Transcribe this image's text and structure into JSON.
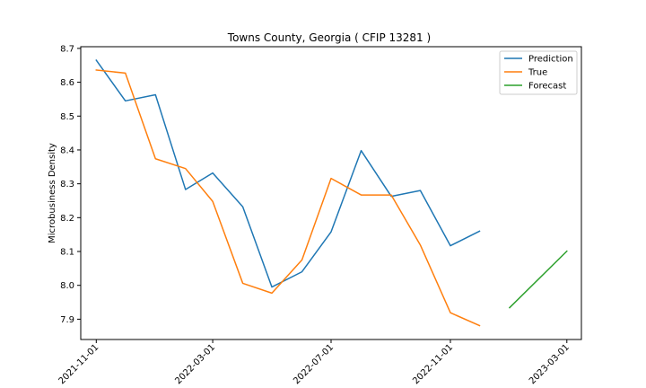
{
  "chart_data": {
    "type": "line",
    "title": "Towns County, Georgia ( CFIP 13281 )",
    "xlabel": "",
    "ylabel": "Microbusiness Density",
    "ylim": [
      7.84,
      8.705
    ],
    "xlim": [
      "2021-10-16",
      "2023-03-16"
    ],
    "y_ticks": [
      7.9,
      8.0,
      8.1,
      8.2,
      8.3,
      8.4,
      8.5,
      8.6,
      8.7
    ],
    "y_tick_labels": [
      "7.9",
      "8.0",
      "8.1",
      "8.2",
      "8.3",
      "8.4",
      "8.5",
      "8.6",
      "8.7"
    ],
    "x_ticks": [
      "2021-11-01",
      "2022-03-01",
      "2022-07-01",
      "2022-11-01",
      "2023-03-01"
    ],
    "x_tick_labels": [
      "2021-11-01",
      "2022-03-01",
      "2022-07-01",
      "2022-11-01",
      "2023-03-01"
    ],
    "grid": false,
    "legend_position": "top-right",
    "series": [
      {
        "name": "Prediction",
        "color": "#1f77b4",
        "x": [
          "2021-11-01",
          "2021-12-01",
          "2022-01-01",
          "2022-02-01",
          "2022-03-01",
          "2022-04-01",
          "2022-05-01",
          "2022-06-01",
          "2022-07-01",
          "2022-08-01",
          "2022-09-01",
          "2022-10-01",
          "2022-11-01",
          "2022-12-01"
        ],
        "y": [
          8.665,
          8.545,
          8.563,
          8.283,
          8.332,
          8.232,
          7.995,
          8.04,
          8.158,
          8.398,
          8.263,
          8.28,
          8.117,
          8.16
        ]
      },
      {
        "name": "True",
        "color": "#ff7f0e",
        "x": [
          "2021-11-01",
          "2021-12-01",
          "2022-01-01",
          "2022-02-01",
          "2022-03-01",
          "2022-04-01",
          "2022-05-01",
          "2022-06-01",
          "2022-07-01",
          "2022-08-01",
          "2022-09-01",
          "2022-10-01",
          "2022-11-01",
          "2022-12-01"
        ],
        "y": [
          8.636,
          8.627,
          8.374,
          8.345,
          8.248,
          8.006,
          7.977,
          8.075,
          8.316,
          8.267,
          8.267,
          8.119,
          7.919,
          7.881
        ]
      },
      {
        "name": "Forecast",
        "color": "#2ca02c",
        "x": [
          "2023-01-01",
          "2023-03-01"
        ],
        "y": [
          7.934,
          8.101
        ]
      }
    ]
  }
}
